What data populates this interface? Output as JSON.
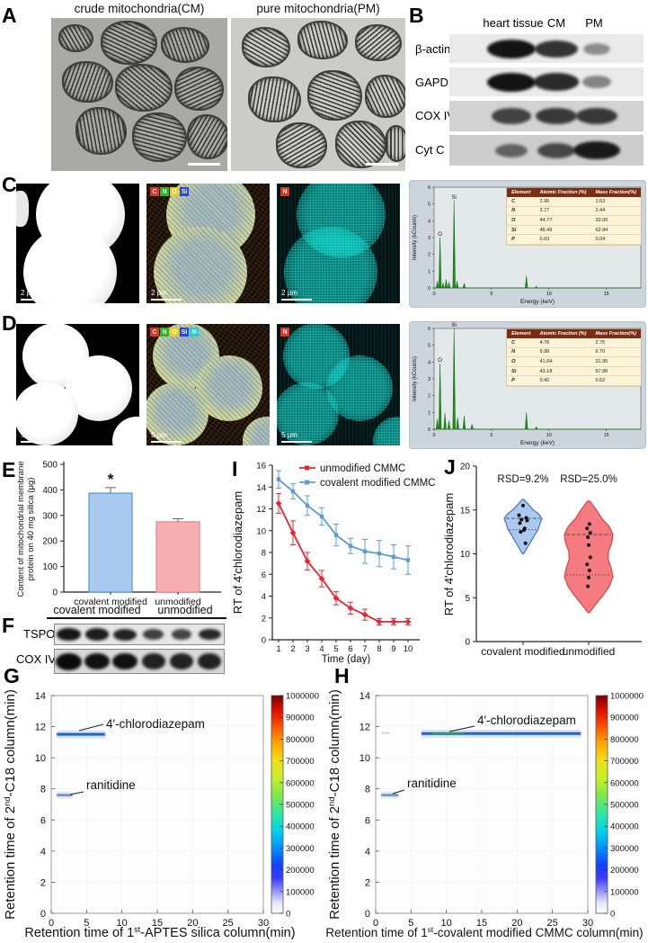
{
  "panelA": {
    "label": "A",
    "images": [
      {
        "title": "crude mitochondria(CM)"
      },
      {
        "title": "pure mitochondria(PM)"
      }
    ]
  },
  "panelB": {
    "label": "B",
    "lanes": [
      "heart tissue",
      "CM",
      "PM"
    ],
    "rows": [
      {
        "label": "β-actin",
        "bands": [
          1.0,
          0.8,
          0.2
        ]
      },
      {
        "label": "GAPDH",
        "bands": [
          1.0,
          0.85,
          0.25
        ]
      },
      {
        "label": "COX IV",
        "bands": [
          0.65,
          0.72,
          0.72
        ]
      },
      {
        "label": "Cyt C",
        "bands": [
          0.4,
          0.6,
          0.95
        ]
      }
    ]
  },
  "panelC": {
    "label": "C",
    "scale_bar": "2 μm",
    "overlay_legend": [
      "C",
      "N",
      "O",
      "Si"
    ],
    "map_legend": "N"
  },
  "panelD": {
    "label": "D",
    "scale_bar": "5 μm",
    "overlay_legend": [
      "C",
      "N",
      "O",
      "Si",
      "N"
    ],
    "map_legend": "N"
  },
  "panelE": {
    "label": "E"
  },
  "panelF": {
    "label": "F",
    "groups": [
      "covalent modified",
      "unmodified"
    ],
    "rows": [
      {
        "label": "TSPO",
        "bands": [
          0.9,
          0.85,
          0.8,
          0.55,
          0.5,
          0.75
        ]
      },
      {
        "label": "COX IV",
        "bands": [
          1.0,
          0.95,
          0.95,
          0.8,
          0.8,
          0.8
        ]
      }
    ]
  },
  "panelG": {
    "label": "G"
  },
  "panelH": {
    "label": "H"
  },
  "panelI": {
    "label": "I"
  },
  "panelJ": {
    "label": "J"
  },
  "chart_data": [
    {
      "id": "eds_c",
      "type": "line",
      "xlabel": "Energy (keV)",
      "ylabel": "Intensity (kCounts)",
      "xlim": [
        0,
        18
      ],
      "ylim": [
        0,
        6
      ],
      "xticks": [
        0,
        5,
        10,
        15
      ],
      "yticks": [
        0,
        1,
        2,
        3,
        4,
        5,
        6
      ],
      "color": "#1e8c1e",
      "peaks": [
        [
          0.28,
          0.4
        ],
        [
          0.52,
          3.0
        ],
        [
          0.78,
          0.3
        ],
        [
          1.05,
          0.5
        ],
        [
          1.3,
          0.35
        ],
        [
          1.74,
          5.2
        ],
        [
          2.0,
          0.4
        ],
        [
          2.62,
          0.28
        ],
        [
          8.04,
          0.72
        ],
        [
          8.9,
          0.1
        ]
      ],
      "peak_labels": [
        {
          "x": 0.52,
          "y": 3.0,
          "text": "O"
        },
        {
          "x": 1.74,
          "y": 5.2,
          "text": "Si"
        }
      ],
      "table": {
        "headers": [
          "Element",
          "Atomic Fraction (%)",
          "Mass Fraction(%)"
        ],
        "rows": [
          [
            "C",
            "2.95",
            "1.63"
          ],
          [
            "N",
            "3.77",
            "2.44"
          ],
          [
            "O",
            "44.77",
            "33.06"
          ],
          [
            "Si",
            "48.49",
            "62.84"
          ],
          [
            "P",
            "0.03",
            "0.04"
          ]
        ]
      }
    },
    {
      "id": "eds_d",
      "type": "line",
      "xlabel": "Energy (keV)",
      "ylabel": "Intensity (kCounts)",
      "xlim": [
        0,
        18
      ],
      "ylim": [
        0,
        6
      ],
      "xticks": [
        0,
        5,
        10,
        15
      ],
      "yticks": [
        0,
        1,
        2,
        3,
        4,
        5,
        6
      ],
      "color": "#1e8c1e",
      "peaks": [
        [
          0.28,
          0.6
        ],
        [
          0.52,
          3.9
        ],
        [
          0.95,
          0.95
        ],
        [
          1.3,
          0.5
        ],
        [
          1.74,
          6.0
        ],
        [
          2.05,
          0.7
        ],
        [
          2.62,
          0.78
        ],
        [
          3.3,
          0.3
        ],
        [
          8.04,
          1.0
        ],
        [
          8.9,
          0.15
        ]
      ],
      "peak_labels": [
        {
          "x": 0.52,
          "y": 3.9,
          "text": "O"
        },
        {
          "x": 1.74,
          "y": 6.0,
          "text": "Si"
        }
      ],
      "table": {
        "headers": [
          "Element",
          "Atomic Fraction (%)",
          "Mass Fraction(%)"
        ],
        "rows": [
          [
            "C",
            "4.78",
            "2.75"
          ],
          [
            "N",
            "9.98",
            "6.70"
          ],
          [
            "O",
            "41.64",
            "31.95"
          ],
          [
            "Si",
            "43.18",
            "57.88"
          ],
          [
            "P",
            "0.42",
            "0.62"
          ]
        ]
      }
    },
    {
      "id": "protein_bar",
      "type": "bar",
      "categories": [
        "covalent modified",
        "unmodified"
      ],
      "values": [
        387,
        275
      ],
      "errors": [
        22,
        12
      ],
      "colors": [
        "#a9c9ef",
        "#f6aeb2"
      ],
      "edge_colors": [
        "#5b9bd5",
        "#e8888e"
      ],
      "annotations": [
        "*",
        ""
      ],
      "ylabel": "Content of mitochondrial membrane\nprotein on 40 mg silica (μg)",
      "ylim": [
        0,
        500
      ],
      "yticks": [
        0,
        100,
        200,
        300,
        400,
        500
      ]
    },
    {
      "id": "rt_line",
      "type": "line",
      "x": [
        1,
        2,
        3,
        4,
        5,
        6,
        7,
        8,
        9,
        10
      ],
      "series": [
        {
          "name": "unmodified CMMC",
          "color": "#e8262d",
          "values": [
            12.5,
            9.8,
            7.2,
            5.6,
            3.8,
            2.9,
            2.3,
            1.65,
            1.65,
            1.65
          ],
          "errors": [
            0.9,
            1.1,
            0.8,
            0.75,
            0.6,
            0.55,
            0.5,
            0.3,
            0.3,
            0.3
          ]
        },
        {
          "name": "covalent modified CMMC",
          "color": "#5b9bd5",
          "values": [
            14.7,
            13.6,
            12.3,
            11.3,
            9.6,
            8.6,
            8.1,
            7.9,
            7.6,
            7.3
          ],
          "errors": [
            0.8,
            0.7,
            0.9,
            0.8,
            1.0,
            0.7,
            1.1,
            1.2,
            1.1,
            1.3
          ]
        }
      ],
      "xlabel": "Time (day)",
      "ylabel": "RT of 4'chlorodiazepam",
      "ylim": [
        0,
        16
      ],
      "yticks": [
        0,
        2,
        4,
        6,
        8,
        10,
        12,
        14,
        16
      ]
    },
    {
      "id": "rt_violin",
      "type": "violin",
      "ylabel": "RT of 4'chlorodiazepam",
      "ylim": [
        0,
        20
      ],
      "yticks": [
        0,
        5,
        10,
        15,
        20
      ],
      "groups": [
        {
          "name": "covalent modified",
          "rsd": "RSD=9.2%",
          "fill": "#a9c9ef",
          "stroke": "#4472c4",
          "points": [
            15.5,
            14.4,
            14.1,
            13.9,
            13.8,
            13.5,
            12.9,
            12.7,
            12.5,
            11.2
          ],
          "lines": [
            14.05,
            12.75
          ],
          "profile": [
            [
              10.0,
              0.03
            ],
            [
              10.7,
              0.22
            ],
            [
              11.4,
              0.42
            ],
            [
              12.1,
              0.6
            ],
            [
              12.8,
              0.8
            ],
            [
              13.5,
              0.9
            ],
            [
              14.0,
              1.0
            ],
            [
              14.5,
              0.85
            ],
            [
              15.1,
              0.5
            ],
            [
              15.7,
              0.25
            ],
            [
              16.2,
              0.04
            ]
          ]
        },
        {
          "name": "unmodified",
          "rsd": "RSD=25.0%",
          "fill": "#f47c80",
          "stroke": "#e03a40",
          "points": [
            13.4,
            12.9,
            12.4,
            11.9,
            11.0,
            9.6,
            8.8,
            8.1,
            7.3,
            6.3
          ],
          "lines": [
            12.2,
            7.6
          ],
          "profile": [
            [
              3.3,
              0.03
            ],
            [
              4.3,
              0.3
            ],
            [
              5.3,
              0.6
            ],
            [
              6.3,
              0.85
            ],
            [
              7.4,
              1.0
            ],
            [
              8.4,
              0.92
            ],
            [
              9.4,
              0.8
            ],
            [
              10.3,
              0.82
            ],
            [
              11.3,
              0.95
            ],
            [
              12.2,
              1.0
            ],
            [
              13.1,
              0.85
            ],
            [
              14.0,
              0.55
            ],
            [
              15.0,
              0.32
            ],
            [
              16.0,
              0.05
            ]
          ]
        }
      ]
    },
    {
      "id": "map_g",
      "type": "heatmap",
      "xlabel_parts": [
        "Retention time of 1",
        "st",
        "-APTES silica column(min)"
      ],
      "ylabel_parts": [
        "Retention time of 2",
        "nd",
        "-C18 column(min)"
      ],
      "xlim": [
        0,
        30
      ],
      "ylim": [
        0,
        14
      ],
      "xticks": [
        0,
        5,
        10,
        15,
        20,
        25,
        30
      ],
      "yticks": [
        0,
        2,
        4,
        6,
        8,
        10,
        12,
        14
      ],
      "colorbar": {
        "ticks": [
          0,
          100000,
          200000,
          300000,
          400000,
          500000,
          600000,
          700000,
          800000,
          900000,
          1000000
        ]
      },
      "bands": [
        {
          "y": 11.5,
          "x1": 0.8,
          "x2": 7.6,
          "label": "4'-chlorodiazepam"
        },
        {
          "y": 7.6,
          "x1": 0.8,
          "x2": 3.0,
          "label": "ranitidine"
        }
      ]
    },
    {
      "id": "map_h",
      "type": "heatmap",
      "xlabel_parts": [
        "Retention time of 1",
        "st",
        "-covalent modified CMMC column(min)"
      ],
      "ylabel_parts": [
        "Retention time of 2",
        "nd",
        "-C18 column(min)"
      ],
      "xlim": [
        0,
        30
      ],
      "ylim": [
        0,
        14
      ],
      "xticks": [
        0,
        5,
        10,
        15,
        20,
        25,
        30
      ],
      "yticks": [
        0,
        2,
        4,
        6,
        8,
        10,
        12,
        14
      ],
      "colorbar": {
        "ticks": [
          0,
          100000,
          200000,
          300000,
          400000,
          500000,
          600000,
          700000,
          800000,
          900000,
          1000000
        ]
      },
      "bands": [
        {
          "y": 11.55,
          "x1": 6.5,
          "x2": 29.0,
          "label": "4'-chlorodiazepam"
        },
        {
          "y": 7.6,
          "x1": 0.8,
          "x2": 3.2,
          "label": "ranitidine"
        },
        {
          "y": 11.6,
          "x1": 0.8,
          "x2": 2.0,
          "label": ""
        }
      ]
    }
  ]
}
